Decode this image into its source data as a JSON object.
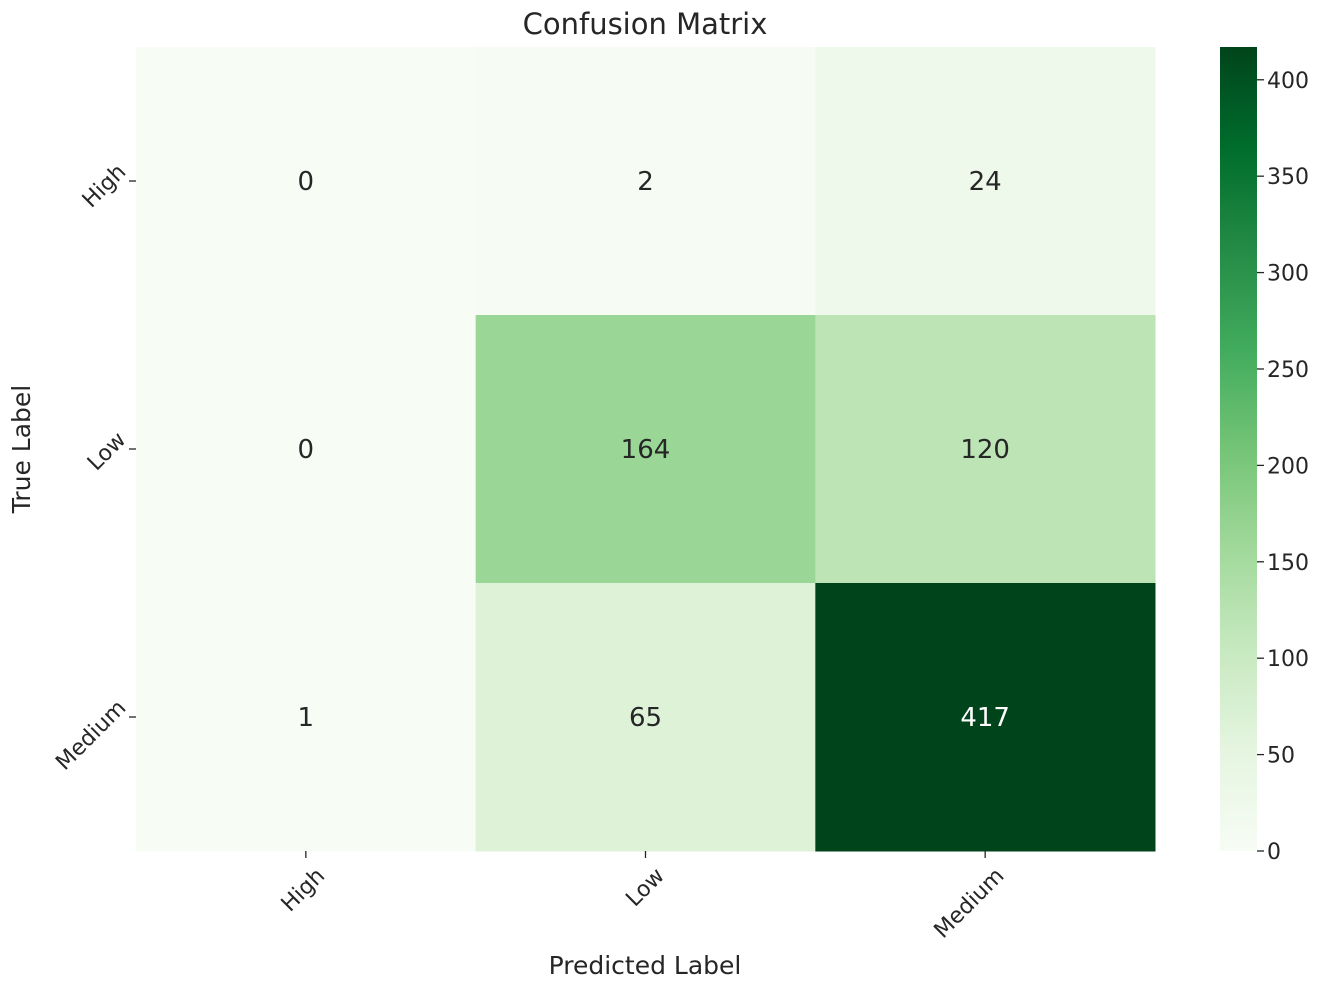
{
  "chart_data": {
    "type": "heatmap",
    "title": "Confusion Matrix",
    "xlabel": "Predicted Label",
    "ylabel": "True Label",
    "x_categories": [
      "High",
      "Low",
      "Medium"
    ],
    "y_categories": [
      "High",
      "Low",
      "Medium"
    ],
    "values": [
      [
        0,
        2,
        24
      ],
      [
        0,
        164,
        120
      ],
      [
        1,
        65,
        417
      ]
    ],
    "colormap": "Greens",
    "colormap_stops": [
      "#f7fcf5",
      "#e5f5e0",
      "#c7e9c0",
      "#a1d99b",
      "#74c476",
      "#41ab5d",
      "#238b45",
      "#006d2c",
      "#00441b"
    ],
    "color_range": [
      0,
      417
    ],
    "colorbar_ticks": [
      "0",
      "50",
      "100",
      "150",
      "200",
      "250",
      "300",
      "350",
      "400"
    ],
    "grid": false,
    "text_color_dark": "#262626",
    "text_color_light": "#ffffff"
  }
}
